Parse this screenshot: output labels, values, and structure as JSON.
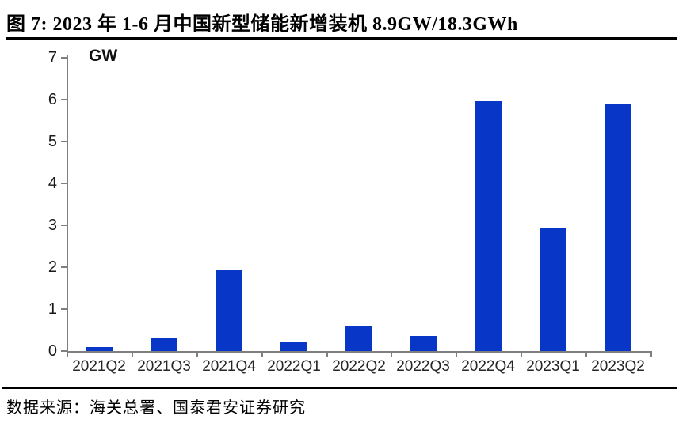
{
  "figure": {
    "title": "图 7:  2023 年 1-6 月中国新型储能新增装机 8.9GW/18.3GWh",
    "source_note": "数据来源：海关总署、国泰君安证券研究"
  },
  "chart_data": {
    "type": "bar",
    "title": "2023 年 1-6 月中国新型储能新增装机 8.9GW/18.3GWh",
    "unit_label": "GW",
    "categories": [
      "2021Q2",
      "2021Q3",
      "2021Q4",
      "2022Q1",
      "2022Q2",
      "2022Q3",
      "2022Q4",
      "2023Q1",
      "2023Q2"
    ],
    "values": [
      0.1,
      0.3,
      1.95,
      0.2,
      0.6,
      0.35,
      5.97,
      2.95,
      5.9
    ],
    "xlabel": "",
    "ylabel": "GW",
    "ylim": [
      0,
      7
    ],
    "ytick_step": 1,
    "grid": false,
    "legend": false,
    "bar_color": "#0837C8",
    "axis_color": "#7f7f7f"
  }
}
